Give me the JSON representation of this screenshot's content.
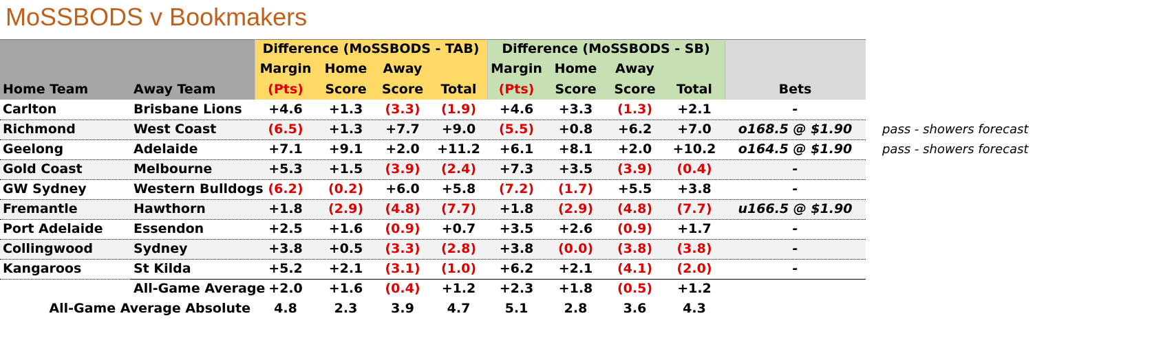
{
  "title": "MoSSBODS v Bookmakers",
  "colors": {
    "title": "#c0601b",
    "header_grey": "#a6a6a6",
    "tab_header": "#ffd966",
    "sb_header": "#c6e0b4",
    "bets_header": "#d9d9d9",
    "stripe": "#f2f2f2",
    "negative": "#e00000"
  },
  "group_headers": {
    "tab": "Difference (MoSSBODS - TAB)",
    "sb": "Difference (MoSSBODS - SB)"
  },
  "column_headers": {
    "home_team": "Home Team",
    "away_team": "Away Team",
    "margin": [
      "Margin",
      "(Pts)"
    ],
    "home_score": [
      "Home",
      "Score"
    ],
    "away_score": [
      "Away",
      "Score"
    ],
    "total": "Total",
    "bets": "Bets"
  },
  "rows": [
    {
      "home": "Carlton",
      "away": "Brisbane Lions",
      "tab": [
        "+4.6",
        "+1.3",
        "(3.3)",
        "(1.9)"
      ],
      "sb": [
        "+4.6",
        "+3.3",
        "(1.3)",
        "+2.1"
      ],
      "bet": "-",
      "note": ""
    },
    {
      "home": "Richmond",
      "away": "West Coast",
      "tab": [
        "(6.5)",
        "+1.3",
        "+7.7",
        "+9.0"
      ],
      "sb": [
        "(5.5)",
        "+0.8",
        "+6.2",
        "+7.0"
      ],
      "bet": "o168.5 @ $1.90",
      "note": "pass - showers forecast"
    },
    {
      "home": "Geelong",
      "away": "Adelaide",
      "tab": [
        "+7.1",
        "+9.1",
        "+2.0",
        "+11.2"
      ],
      "sb": [
        "+6.1",
        "+8.1",
        "+2.0",
        "+10.2"
      ],
      "bet": "o164.5 @ $1.90",
      "note": "pass - showers forecast"
    },
    {
      "home": "Gold Coast",
      "away": "Melbourne",
      "tab": [
        "+5.3",
        "+1.5",
        "(3.9)",
        "(2.4)"
      ],
      "sb": [
        "+7.3",
        "+3.5",
        "(3.9)",
        "(0.4)"
      ],
      "bet": "-",
      "note": ""
    },
    {
      "home": "GW Sydney",
      "away": "Western Bulldogs",
      "tab": [
        "(6.2)",
        "(0.2)",
        "+6.0",
        "+5.8"
      ],
      "sb": [
        "(7.2)",
        "(1.7)",
        "+5.5",
        "+3.8"
      ],
      "bet": "-",
      "note": ""
    },
    {
      "home": "Fremantle",
      "away": "Hawthorn",
      "tab": [
        "+1.8",
        "(2.9)",
        "(4.8)",
        "(7.7)"
      ],
      "sb": [
        "+1.8",
        "(2.9)",
        "(4.8)",
        "(7.7)"
      ],
      "bet": "u166.5 @ $1.90",
      "note": ""
    },
    {
      "home": "Port Adelaide",
      "away": "Essendon",
      "tab": [
        "+2.5",
        "+1.6",
        "(0.9)",
        "+0.7"
      ],
      "sb": [
        "+3.5",
        "+2.6",
        "(0.9)",
        "+1.7"
      ],
      "bet": "-",
      "note": ""
    },
    {
      "home": "Collingwood",
      "away": "Sydney",
      "tab": [
        "+3.8",
        "+0.5",
        "(3.3)",
        "(2.8)"
      ],
      "sb": [
        "+3.8",
        "(0.0)",
        "(3.8)",
        "(3.8)"
      ],
      "bet": "-",
      "note": ""
    },
    {
      "home": "Kangaroos",
      "away": "St Kilda",
      "tab": [
        "+5.2",
        "+2.1",
        "(3.1)",
        "(1.0)"
      ],
      "sb": [
        "+6.2",
        "+2.1",
        "(4.1)",
        "(2.0)"
      ],
      "bet": "-",
      "note": ""
    }
  ],
  "summary": [
    {
      "label": "All-Game Average",
      "tab": [
        "+2.0",
        "+1.6",
        "(0.4)",
        "+1.2"
      ],
      "sb": [
        "+2.3",
        "+1.8",
        "(0.5)",
        "+1.2"
      ]
    },
    {
      "label": "All-Game Average Absolute",
      "tab": [
        "4.8",
        "2.3",
        "3.9",
        "4.7"
      ],
      "sb": [
        "5.1",
        "2.8",
        "3.6",
        "4.3"
      ]
    }
  ]
}
